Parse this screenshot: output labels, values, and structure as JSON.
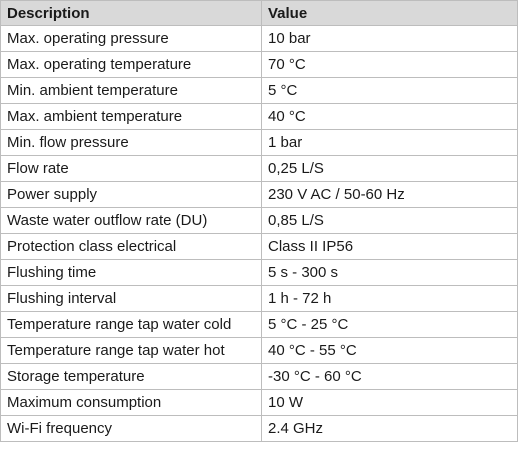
{
  "table": {
    "headers": [
      "Description",
      "Value"
    ],
    "rows": [
      [
        "Max. operating pressure",
        "10 bar"
      ],
      [
        "Max. operating temperature",
        "70 °C"
      ],
      [
        "Min. ambient temperature",
        "5 °C"
      ],
      [
        "Max. ambient temperature",
        "40 °C"
      ],
      [
        "Min. flow pressure",
        "1 bar"
      ],
      [
        "Flow rate",
        "0,25 L/S"
      ],
      [
        "Power supply",
        "230 V AC / 50-60 Hz"
      ],
      [
        "Waste water outflow rate (DU)",
        "0,85 L/S"
      ],
      [
        "Protection class electrical",
        "Class II IP56"
      ],
      [
        "Flushing time",
        "5 s - 300 s"
      ],
      [
        "Flushing interval",
        "1 h - 72 h"
      ],
      [
        "Temperature range tap water cold",
        "5 °C - 25 °C"
      ],
      [
        "Temperature range tap water hot",
        "40 °C - 55 °C"
      ],
      [
        "Storage temperature",
        "-30 °C - 60 °C"
      ],
      [
        "Maximum consumption",
        "10 W"
      ],
      [
        "Wi-Fi frequency",
        "2.4 GHz"
      ]
    ]
  },
  "colors": {
    "header_background": "#d9d9d9",
    "border": "#bdbdbd",
    "text": "#1a1a1a"
  }
}
